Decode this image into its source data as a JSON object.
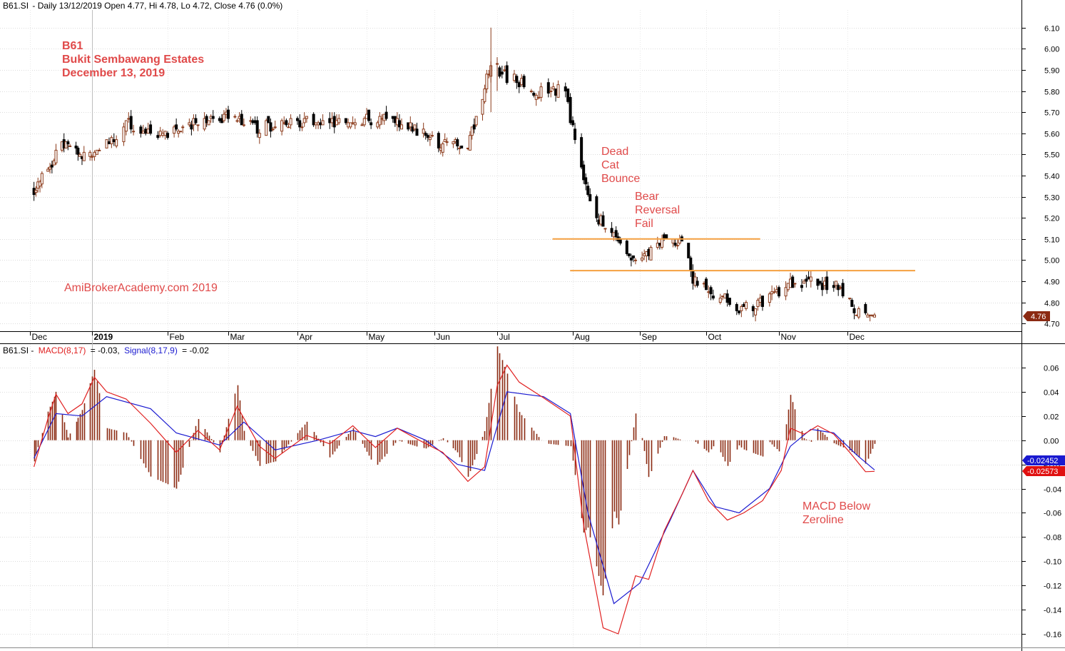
{
  "price_header": {
    "symbol": "B61.SI",
    "text": "- Daily 13/12/2019 Open 4.77, Hi 4.78, Lo 4.72, Close 4.76 (0.0%)"
  },
  "macd_header": {
    "symbol": "B61.SI -",
    "macd_label": "MACD(8,17)",
    "macd_value": "= -0.03,",
    "signal_label": "Signal(8,17,9)",
    "signal_value": "= -0.02"
  },
  "annotations": {
    "ticker": "B61",
    "company": "Bukit Sembawang Estates",
    "date": "December 13, 2019",
    "watermark": "AmiBrokerAcademy.com   2019",
    "dead_cat": [
      "Dead",
      "Cat",
      "Bounce"
    ],
    "bear_reversal": [
      "Bear",
      "Reversal",
      "Fail"
    ],
    "macd_below": [
      "MACD Below",
      "Zeroline"
    ]
  },
  "tags": {
    "close": "4.76",
    "signal": "-0.02452",
    "macd": "-0.02573"
  },
  "colors": {
    "up_candle": "#8b3a1a",
    "down_candle": "#000000",
    "macd_line": "#e02020",
    "signal_line": "#1a1ad0",
    "histogram": "#8b2a12",
    "support_lines": "#f5a040",
    "annotation_text": "#e04a4a",
    "close_tag": "#8b2a12"
  },
  "chart_data": [
    {
      "type": "candlestick",
      "title": "B61.SI - Daily 13/12/2019 Open 4.77, Hi 4.78, Lo 4.72, Close 4.76 (0.0%)",
      "ylim": [
        4.67,
        6.17
      ],
      "y_ticks": [
        "6.10",
        "6.00",
        "5.90",
        "5.80",
        "5.70",
        "5.60",
        "5.50",
        "5.40",
        "5.30",
        "5.20",
        "5.10",
        "5.00",
        "4.90",
        "4.80",
        "4.70"
      ],
      "x_labels": [
        "Dec",
        "2019",
        "Feb",
        "Mar",
        "Apr",
        "May",
        "Jun",
        "Jul",
        "Aug",
        "Sep",
        "Oct",
        "Nov",
        "Dec"
      ],
      "grid": true,
      "close_series": [
        {
          "date": "2018-12-03",
          "close": 5.33
        },
        {
          "date": "2018-12-17",
          "close": 5.55
        },
        {
          "date": "2019-01-02",
          "close": 5.48
        },
        {
          "date": "2019-01-15",
          "close": 5.65
        },
        {
          "date": "2019-02-01",
          "close": 5.58
        },
        {
          "date": "2019-02-15",
          "close": 5.66
        },
        {
          "date": "2019-03-01",
          "close": 5.67
        },
        {
          "date": "2019-03-15",
          "close": 5.62
        },
        {
          "date": "2019-04-01",
          "close": 5.66
        },
        {
          "date": "2019-04-15",
          "close": 5.64
        },
        {
          "date": "2019-05-01",
          "close": 5.66
        },
        {
          "date": "2019-05-15",
          "close": 5.66
        },
        {
          "date": "2019-06-03",
          "close": 5.55
        },
        {
          "date": "2019-06-17",
          "close": 5.54
        },
        {
          "date": "2019-06-28",
          "close": 5.92
        },
        {
          "date": "2019-07-15",
          "close": 5.8
        },
        {
          "date": "2019-07-29",
          "close": 5.8
        },
        {
          "date": "2019-08-02",
          "close": 5.55
        },
        {
          "date": "2019-08-09",
          "close": 5.25
        },
        {
          "date": "2019-08-19",
          "close": 5.12
        },
        {
          "date": "2019-08-30",
          "close": 5.0
        },
        {
          "date": "2019-09-10",
          "close": 5.08
        },
        {
          "date": "2019-09-20",
          "close": 5.1
        },
        {
          "date": "2019-09-25",
          "close": 4.9
        },
        {
          "date": "2019-10-03",
          "close": 4.85
        },
        {
          "date": "2019-10-15",
          "close": 4.78
        },
        {
          "date": "2019-10-25",
          "close": 4.8
        },
        {
          "date": "2019-11-05",
          "close": 4.89
        },
        {
          "date": "2019-11-15",
          "close": 4.9
        },
        {
          "date": "2019-11-28",
          "close": 4.86
        },
        {
          "date": "2019-12-05",
          "close": 4.77
        },
        {
          "date": "2019-12-13",
          "close": 4.76
        }
      ],
      "last_bar": {
        "open": 4.77,
        "high": 4.78,
        "low": 4.72,
        "close": 4.76
      },
      "support_levels": [
        {
          "from": "2019-07-31",
          "to": "2019-10-24",
          "value": 5.1
        },
        {
          "from": "2019-08-08",
          "to": "2019-12-31",
          "value": 4.95
        }
      ]
    },
    {
      "type": "line",
      "title": "B61.SI - MACD(8,17) = -0.03, Signal(8,17,9) = -0.02",
      "ylim": [
        -0.17,
        0.07
      ],
      "y_ticks": [
        "0.06",
        "0.04",
        "0.02",
        "0.00",
        "-0.02",
        "-0.04",
        "-0.06",
        "-0.08",
        "-0.10",
        "-0.12",
        "-0.14",
        "-0.16"
      ],
      "series": [
        {
          "name": "MACD(8,17)",
          "points": [
            {
              "date": "2018-12-03",
              "value": -0.022
            },
            {
              "date": "2018-12-10",
              "value": 0.018
            },
            {
              "date": "2018-12-14",
              "value": 0.038
            },
            {
              "date": "2018-12-20",
              "value": 0.022
            },
            {
              "date": "2018-12-27",
              "value": 0.03
            },
            {
              "date": "2019-01-02",
              "value": 0.052
            },
            {
              "date": "2019-01-07",
              "value": 0.04
            },
            {
              "date": "2019-01-15",
              "value": 0.034
            },
            {
              "date": "2019-01-25",
              "value": 0.014
            },
            {
              "date": "2019-02-05",
              "value": -0.01
            },
            {
              "date": "2019-02-15",
              "value": 0.008
            },
            {
              "date": "2019-02-25",
              "value": -0.008
            },
            {
              "date": "2019-03-05",
              "value": 0.028
            },
            {
              "date": "2019-03-15",
              "value": -0.005
            },
            {
              "date": "2019-03-22",
              "value": -0.015
            },
            {
              "date": "2019-04-05",
              "value": 0.004
            },
            {
              "date": "2019-04-15",
              "value": -0.003
            },
            {
              "date": "2019-04-25",
              "value": 0.012
            },
            {
              "date": "2019-05-05",
              "value": -0.006
            },
            {
              "date": "2019-05-15",
              "value": 0.01
            },
            {
              "date": "2019-05-25",
              "value": 0.0
            },
            {
              "date": "2019-06-05",
              "value": -0.01
            },
            {
              "date": "2019-06-17",
              "value": -0.034
            },
            {
              "date": "2019-06-25",
              "value": -0.022
            },
            {
              "date": "2019-07-01",
              "value": 0.045
            },
            {
              "date": "2019-07-05",
              "value": 0.062
            },
            {
              "date": "2019-07-10",
              "value": 0.048
            },
            {
              "date": "2019-07-20",
              "value": 0.035
            },
            {
              "date": "2019-07-31",
              "value": 0.02
            },
            {
              "date": "2019-08-06",
              "value": -0.07
            },
            {
              "date": "2019-08-15",
              "value": -0.155
            },
            {
              "date": "2019-08-22",
              "value": -0.16
            },
            {
              "date": "2019-08-30",
              "value": -0.112
            },
            {
              "date": "2019-09-05",
              "value": -0.115
            },
            {
              "date": "2019-09-12",
              "value": -0.075
            },
            {
              "date": "2019-09-20",
              "value": -0.045
            },
            {
              "date": "2019-09-25",
              "value": -0.025
            },
            {
              "date": "2019-10-02",
              "value": -0.05
            },
            {
              "date": "2019-10-10",
              "value": -0.066
            },
            {
              "date": "2019-10-17",
              "value": -0.06
            },
            {
              "date": "2019-10-25",
              "value": -0.05
            },
            {
              "date": "2019-11-02",
              "value": -0.025
            },
            {
              "date": "2019-11-06",
              "value": 0.01
            },
            {
              "date": "2019-11-12",
              "value": 0.005
            },
            {
              "date": "2019-11-18",
              "value": 0.012
            },
            {
              "date": "2019-11-25",
              "value": 0.005
            },
            {
              "date": "2019-12-02",
              "value": -0.01
            },
            {
              "date": "2019-12-09",
              "value": -0.026
            },
            {
              "date": "2019-12-13",
              "value": -0.02573
            }
          ]
        },
        {
          "name": "Signal(8,17,9)",
          "points": [
            {
              "date": "2018-12-03",
              "value": -0.015
            },
            {
              "date": "2018-12-14",
              "value": 0.022
            },
            {
              "date": "2018-12-27",
              "value": 0.02
            },
            {
              "date": "2019-01-07",
              "value": 0.036
            },
            {
              "date": "2019-01-25",
              "value": 0.026
            },
            {
              "date": "2019-02-05",
              "value": 0.006
            },
            {
              "date": "2019-02-25",
              "value": -0.004
            },
            {
              "date": "2019-03-08",
              "value": 0.015
            },
            {
              "date": "2019-03-22",
              "value": -0.008
            },
            {
              "date": "2019-04-10",
              "value": 0.0
            },
            {
              "date": "2019-04-25",
              "value": 0.008
            },
            {
              "date": "2019-05-05",
              "value": 0.003
            },
            {
              "date": "2019-05-15",
              "value": 0.01
            },
            {
              "date": "2019-05-28",
              "value": 0.0
            },
            {
              "date": "2019-06-12",
              "value": -0.02
            },
            {
              "date": "2019-06-25",
              "value": -0.025
            },
            {
              "date": "2019-07-05",
              "value": 0.04
            },
            {
              "date": "2019-07-20",
              "value": 0.036
            },
            {
              "date": "2019-07-31",
              "value": 0.022
            },
            {
              "date": "2019-08-08",
              "value": -0.06
            },
            {
              "date": "2019-08-20",
              "value": -0.135
            },
            {
              "date": "2019-09-01",
              "value": -0.118
            },
            {
              "date": "2019-09-15",
              "value": -0.065
            },
            {
              "date": "2019-09-25",
              "value": -0.025
            },
            {
              "date": "2019-10-05",
              "value": -0.055
            },
            {
              "date": "2019-10-15",
              "value": -0.06
            },
            {
              "date": "2019-10-28",
              "value": -0.04
            },
            {
              "date": "2019-11-06",
              "value": -0.005
            },
            {
              "date": "2019-11-15",
              "value": 0.009
            },
            {
              "date": "2019-11-25",
              "value": 0.006
            },
            {
              "date": "2019-12-05",
              "value": -0.012
            },
            {
              "date": "2019-12-13",
              "value": -0.02452
            }
          ]
        }
      ]
    }
  ]
}
